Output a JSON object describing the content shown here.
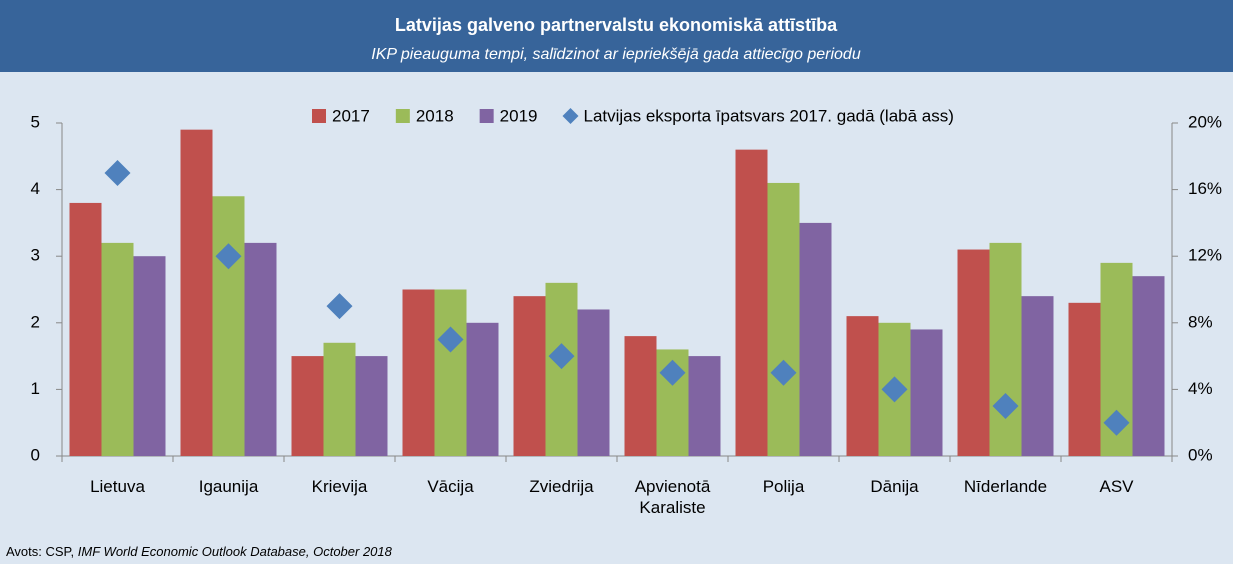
{
  "chart_data": {
    "type": "bar",
    "title": "Latvijas galveno partnervalstu ekonomiskā attīstība",
    "subtitle": "IKP pieauguma tempi, salīdzinot ar iepriekšējā gada attiecīgo periodu",
    "categories": [
      "Lietuva",
      "Igaunija",
      "Krievija",
      "Vācija",
      "Zviedrija",
      "Apvienotā Karaliste",
      "Polija",
      "Dānija",
      "Nīderlande",
      "ASV"
    ],
    "series": [
      {
        "name": "2017",
        "color": "#c0504d",
        "values": [
          3.8,
          4.9,
          1.5,
          2.5,
          2.4,
          1.8,
          4.6,
          2.1,
          3.1,
          2.3
        ]
      },
      {
        "name": "2018",
        "color": "#9bbb59",
        "values": [
          3.2,
          3.9,
          1.7,
          2.5,
          2.6,
          1.6,
          4.1,
          2.0,
          3.2,
          2.9
        ]
      },
      {
        "name": "2019",
        "color": "#8064a2",
        "values": [
          3.0,
          3.2,
          1.5,
          2.0,
          2.2,
          1.5,
          3.5,
          1.9,
          2.4,
          2.7
        ]
      },
      {
        "name": "Latvijas eksporta īpatsvars 2017. gadā (labā ass)",
        "color": "#4f81bd",
        "axis": "y2",
        "marker": "diamond",
        "values": [
          17,
          12,
          9,
          7,
          6,
          5,
          5,
          4,
          3,
          2
        ]
      }
    ],
    "ylim": [
      0,
      5
    ],
    "yticks": [
      0,
      1,
      2,
      3,
      4,
      5
    ],
    "y2lim": [
      0,
      20
    ],
    "y2ticks": [
      {
        "value": 0,
        "label": "0%"
      },
      {
        "value": 4,
        "label": "4%"
      },
      {
        "value": 8,
        "label": "8%"
      },
      {
        "value": 12,
        "label": "12%"
      },
      {
        "value": 16,
        "label": "16%"
      },
      {
        "value": 20,
        "label": "20%"
      }
    ],
    "legend": "top",
    "source": {
      "text": "Avots: CSP,",
      "italic": "IMF World Economic Outlook Database, October 2018"
    }
  }
}
